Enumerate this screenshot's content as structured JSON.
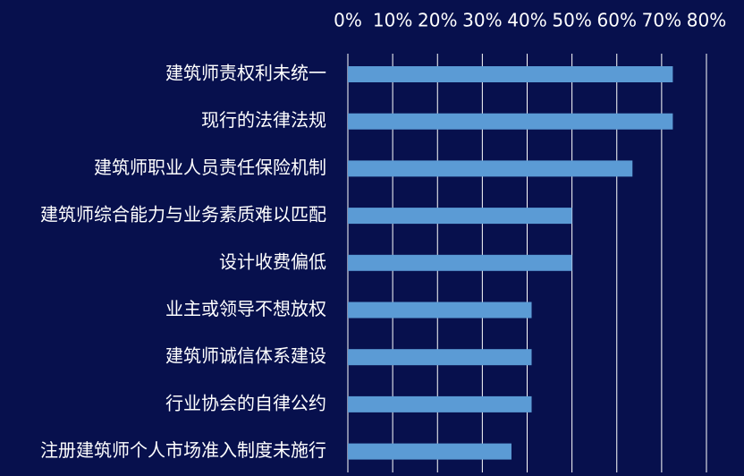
{
  "colors": {
    "background": "#07104d",
    "bar": "#5b9bd5",
    "gridline": "#ffffff",
    "text": "#ffffff"
  },
  "chart_data": {
    "type": "bar",
    "orientation": "horizontal",
    "title": "",
    "xlabel": "",
    "ylabel": "",
    "xlim": [
      0,
      0.8
    ],
    "x_axis_position": "top",
    "x_ticks": [
      "0%",
      "10%",
      "20%",
      "30%",
      "40%",
      "50%",
      "60%",
      "70%",
      "80%"
    ],
    "grid": true,
    "legend": "none",
    "categories": [
      "建筑师责权利未统一",
      "现行的法律法规",
      "建筑师职业人员责任保险机制",
      "建筑师综合能力与业务素质难以匹配",
      "设计收费偏低",
      "业主或领导不想放权",
      "建筑师诚信体系建设",
      "行业协会的自律公约",
      "注册建筑师个人市场准入制度未施行"
    ],
    "values": [
      0.725,
      0.725,
      0.635,
      0.5,
      0.5,
      0.41,
      0.41,
      0.41,
      0.365
    ]
  }
}
